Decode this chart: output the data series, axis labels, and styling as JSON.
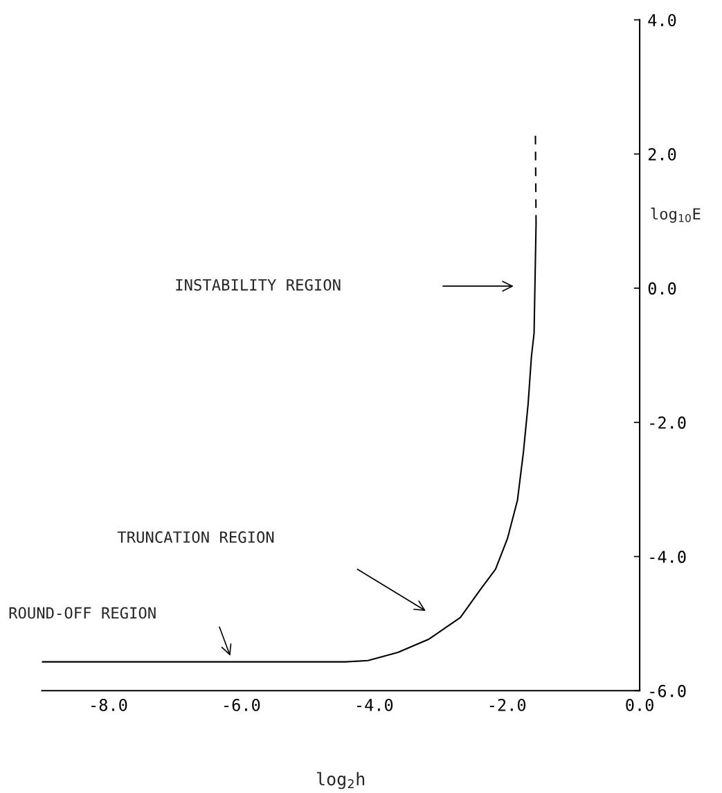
{
  "chart_data": {
    "type": "line",
    "xlabel": "log$_{2}$h",
    "ylabel": "log$_{10}$E",
    "xlim": [
      -9,
      0
    ],
    "ylim": [
      -6,
      4
    ],
    "xticks": [
      {
        "value": -8,
        "label": "-8.0"
      },
      {
        "value": -6,
        "label": "-6.0"
      },
      {
        "value": -4,
        "label": "-4.0"
      },
      {
        "value": -2,
        "label": "-2.0"
      },
      {
        "value": 0,
        "label": "0.0"
      }
    ],
    "yticks": [
      {
        "value": -6,
        "label": "-6.0"
      },
      {
        "value": -4,
        "label": "-4.0"
      },
      {
        "value": -2,
        "label": "-2.0"
      },
      {
        "value": 0,
        "label": "0.0"
      },
      {
        "value": 2,
        "label": "2.0"
      },
      {
        "value": 4,
        "label": "4.0"
      }
    ],
    "grid": false,
    "legend": false,
    "series": [
      {
        "color": "#000000",
        "line_style": "solid",
        "x": [
          -9,
          -6,
          -4.43,
          -4.09,
          -3.64,
          -3.17,
          -2.7,
          -2.39,
          -2.17,
          -1.99,
          -1.84,
          -1.75,
          -1.68,
          -1.63,
          -1.59,
          -1.56
        ],
        "values": [
          -5.57,
          -5.57,
          -5.57,
          -5.55,
          -5.43,
          -5.23,
          -4.91,
          -4.48,
          -4.19,
          -3.73,
          -3.16,
          -2.44,
          -1.73,
          -1.02,
          -0.67,
          0.96
        ]
      },
      {
        "color": "#000000",
        "line_style": "dashed",
        "x": [
          -1.56,
          -1.57
        ],
        "values": [
          0.96,
          2.28
        ]
      }
    ],
    "annotations": [
      "INSTABILITY REGION",
      "TRUNCATION REGION",
      "ROUND-OFF REGION"
    ]
  }
}
